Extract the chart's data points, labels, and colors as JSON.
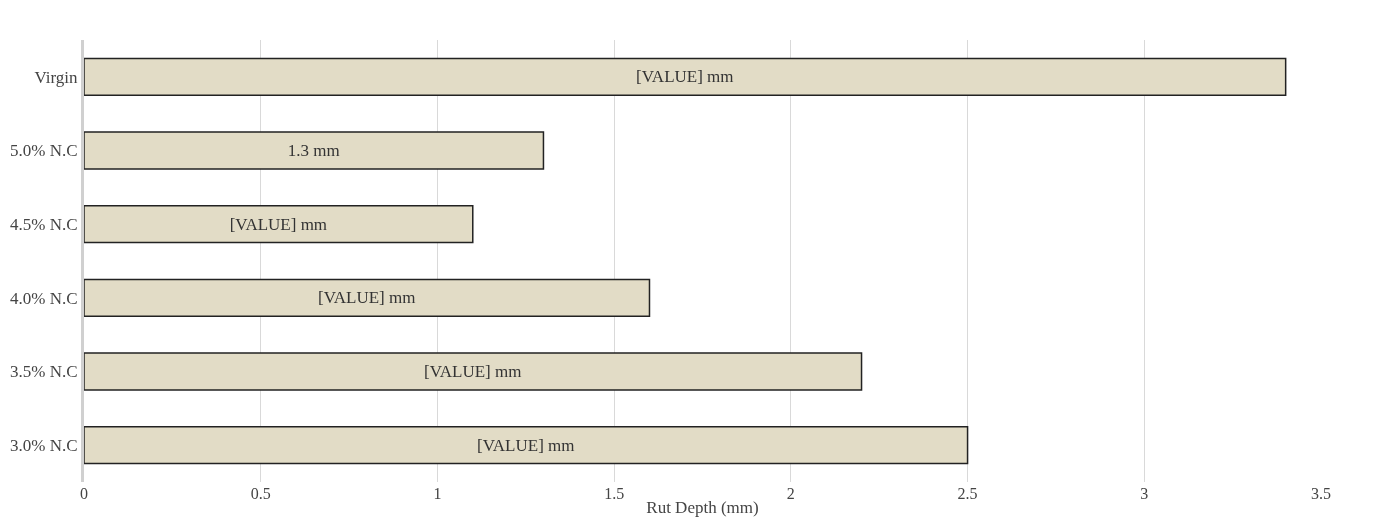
{
  "chart_data": {
    "type": "bar",
    "orientation": "horizontal",
    "xlabel": "Rut Depth (mm)",
    "categories": [
      "Virgin",
      "5.0% N.C",
      "4.5% N.C",
      "4.0% N.C",
      "3.5% N.C",
      "3.0% N.C"
    ],
    "values": [
      3.4,
      1.3,
      1.1,
      1.6,
      2.2,
      2.5
    ],
    "value_labels": [
      "[VALUE] mm",
      "1.3 mm",
      "[VALUE] mm",
      "[VALUE] mm",
      "[VALUE] mm",
      "[VALUE] mm"
    ],
    "color": "#e2dcc6",
    "xlim": [
      0,
      3.5
    ],
    "xticks": [
      0,
      0.5,
      1,
      1.5,
      2,
      2.5,
      3,
      3.5
    ],
    "grid": "x",
    "legend": false
  }
}
